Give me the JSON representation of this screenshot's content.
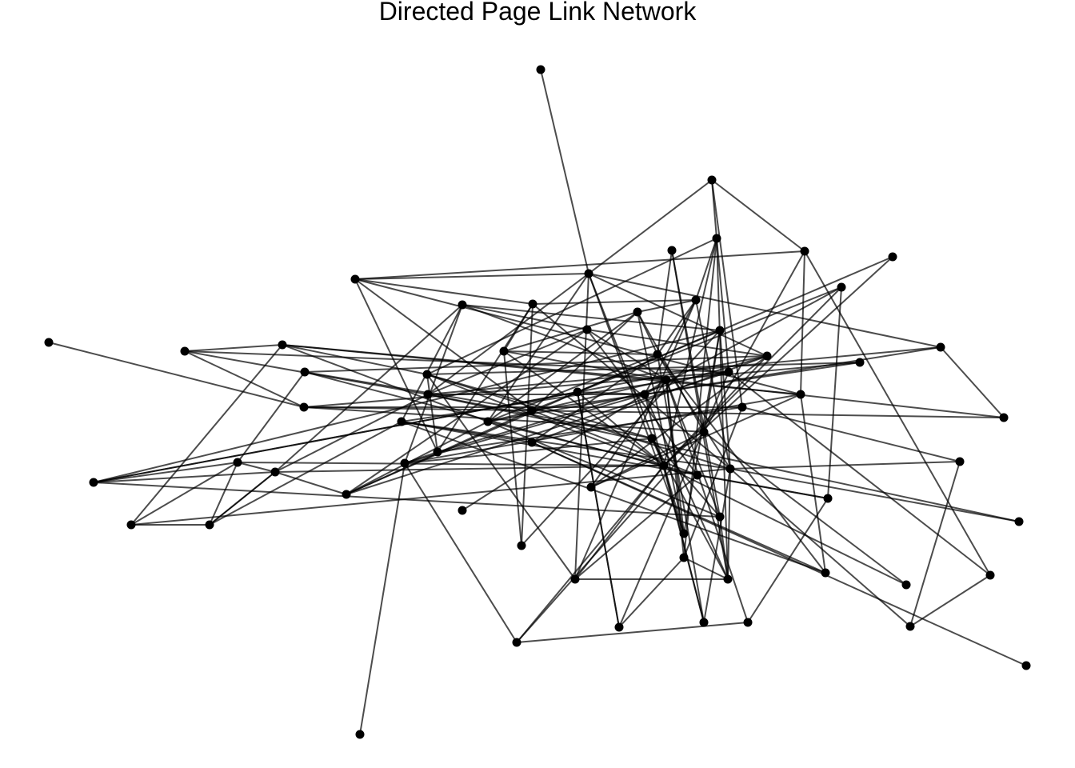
{
  "title": "Directed Page Link Network",
  "colors": {
    "edge": "#000000",
    "node": "#000000",
    "background": "#ffffff"
  }
}
